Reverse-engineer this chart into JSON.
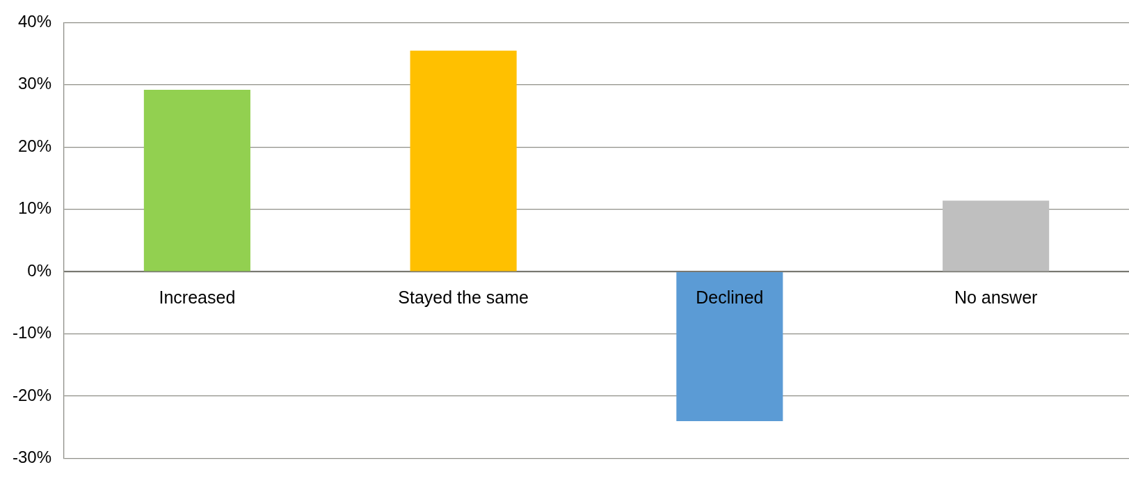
{
  "chart_data": {
    "type": "bar",
    "categories": [
      "Increased",
      "Stayed the same",
      "Declined",
      "No answer"
    ],
    "values": [
      29.2,
      35.5,
      -24.0,
      11.4
    ],
    "colors": [
      "#92d050",
      "#ffc000",
      "#5b9bd5",
      "#bfbfbf"
    ],
    "ylim": [
      -30,
      40
    ],
    "yticks": [
      {
        "value": -30,
        "label": "-30%"
      },
      {
        "value": -20,
        "label": "-20%"
      },
      {
        "value": -10,
        "label": "-10%"
      },
      {
        "value": 0,
        "label": "0%"
      },
      {
        "value": 10,
        "label": "10%"
      },
      {
        "value": 20,
        "label": "20%"
      },
      {
        "value": 30,
        "label": "30%"
      },
      {
        "value": 40,
        "label": "40%"
      }
    ],
    "grid": "y"
  }
}
